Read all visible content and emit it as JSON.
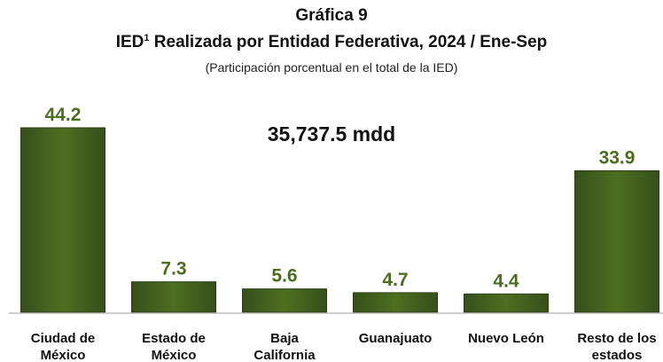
{
  "figure_label": "Gráfica 9",
  "title": {
    "main": "IED",
    "superscript": "1",
    "rest": " Realizada por Entidad Federativa, 2024 / Ene-Sep"
  },
  "subtitle": "(Participación porcentual en el total de la IED)",
  "total": "35,737.5 mdd",
  "colors": {
    "bar": "#3e5c17",
    "bar_light": "#5b7f27",
    "value_label": "#4a6e1e",
    "baseline": "#bdbdbd"
  },
  "chart_data": {
    "type": "bar",
    "title": "IED¹ Realizada por Entidad Federativa, 2024 / Ene-Sep",
    "subtitle": "(Participación porcentual en el total de la IED)",
    "annotation": "35,737.5 mdd",
    "categories": [
      [
        "Ciudad de",
        "México"
      ],
      [
        "Estado de",
        "México"
      ],
      [
        "Baja",
        "California"
      ],
      [
        "Guanajuato"
      ],
      [
        "Nuevo León"
      ],
      [
        "Resto de los",
        "estados"
      ]
    ],
    "values": [
      44.2,
      7.3,
      5.6,
      4.7,
      4.4,
      33.9
    ],
    "value_labels": [
      "44.2",
      "7.3",
      "5.6",
      "4.7",
      "4.4",
      "33.9"
    ],
    "ylim": [
      0,
      50
    ],
    "grid": false,
    "legend": "none"
  }
}
